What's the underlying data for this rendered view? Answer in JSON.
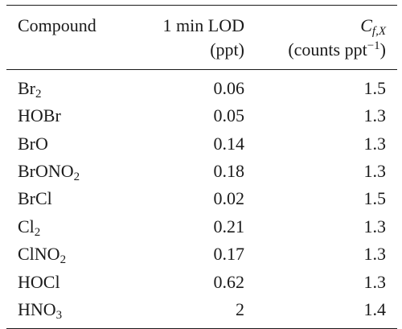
{
  "table": {
    "headers": {
      "compound": "Compound",
      "lod_line1": "1 min LOD",
      "lod_line2": "(ppt)",
      "cf_symbol": "C",
      "cf_subscript": "f,X",
      "cf_unit_prefix": "(counts ppt",
      "cf_unit_exponent": "−1",
      "cf_unit_suffix": ")"
    },
    "rows": [
      {
        "compound_main": "Br",
        "compound_sub": "2",
        "compound_tail": "",
        "lod": "0.06",
        "cf": "1.5"
      },
      {
        "compound_main": "HOBr",
        "compound_sub": "",
        "compound_tail": "",
        "lod": "0.05",
        "cf": "1.3"
      },
      {
        "compound_main": "BrO",
        "compound_sub": "",
        "compound_tail": "",
        "lod": "0.14",
        "cf": "1.3"
      },
      {
        "compound_main": "BrONO",
        "compound_sub": "2",
        "compound_tail": "",
        "lod": "0.18",
        "cf": "1.3"
      },
      {
        "compound_main": "BrCl",
        "compound_sub": "",
        "compound_tail": "",
        "lod": "0.02",
        "cf": "1.5"
      },
      {
        "compound_main": "Cl",
        "compound_sub": "2",
        "compound_tail": "",
        "lod": "0.21",
        "cf": "1.3"
      },
      {
        "compound_main": "ClNO",
        "compound_sub": "2",
        "compound_tail": "",
        "lod": "0.17",
        "cf": "1.3"
      },
      {
        "compound_main": "HOCl",
        "compound_sub": "",
        "compound_tail": "",
        "lod": "0.62",
        "cf": "1.3"
      },
      {
        "compound_main": "HNO",
        "compound_sub": "3",
        "compound_tail": "",
        "lod": "2",
        "cf": "1.4"
      }
    ]
  }
}
